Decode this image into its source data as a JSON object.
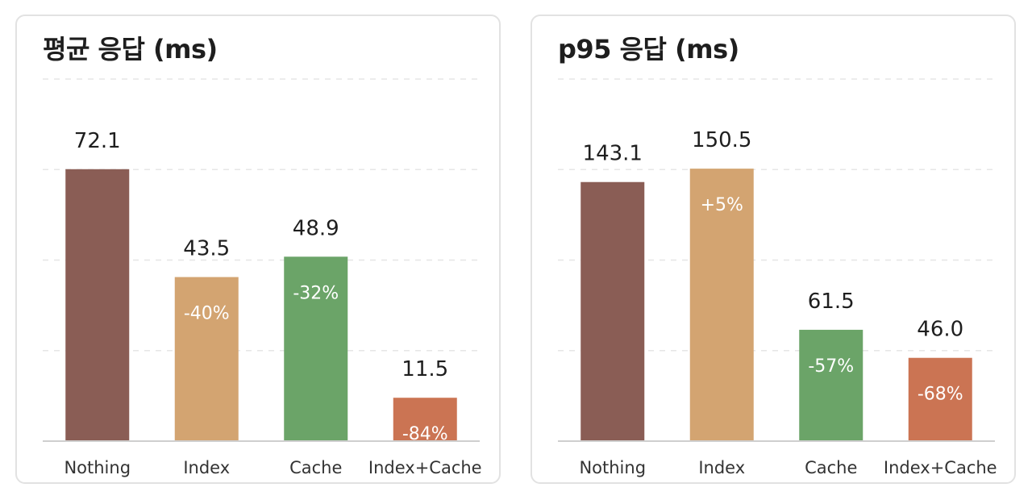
{
  "chart_data": [
    {
      "type": "bar",
      "title": "평균 응답 (ms)",
      "categories": [
        "Nothing",
        "Index",
        "Cache",
        "Index+Cache"
      ],
      "values": [
        72.1,
        43.5,
        48.9,
        11.5
      ],
      "value_labels": [
        "72.1",
        "43.5",
        "48.9",
        "11.5"
      ],
      "change_labels": [
        "",
        "-40%",
        "-32%",
        "-84%"
      ],
      "colors": [
        "#8a5d55",
        "#d3a471",
        "#6ba468",
        "#cb7453"
      ],
      "ylim": [
        0,
        96
      ],
      "grid": true
    },
    {
      "type": "bar",
      "title": "p95 응답 (ms)",
      "categories": [
        "Nothing",
        "Index",
        "Cache",
        "Index+Cache"
      ],
      "values": [
        143.1,
        150.5,
        61.5,
        46.0
      ],
      "value_labels": [
        "143.1",
        "150.5",
        "61.5",
        "46.0"
      ],
      "change_labels": [
        "",
        "+5%",
        "-57%",
        "-68%"
      ],
      "colors": [
        "#8a5d55",
        "#d3a471",
        "#6ba468",
        "#cb7453"
      ],
      "ylim": [
        0,
        200
      ],
      "grid": true
    }
  ]
}
